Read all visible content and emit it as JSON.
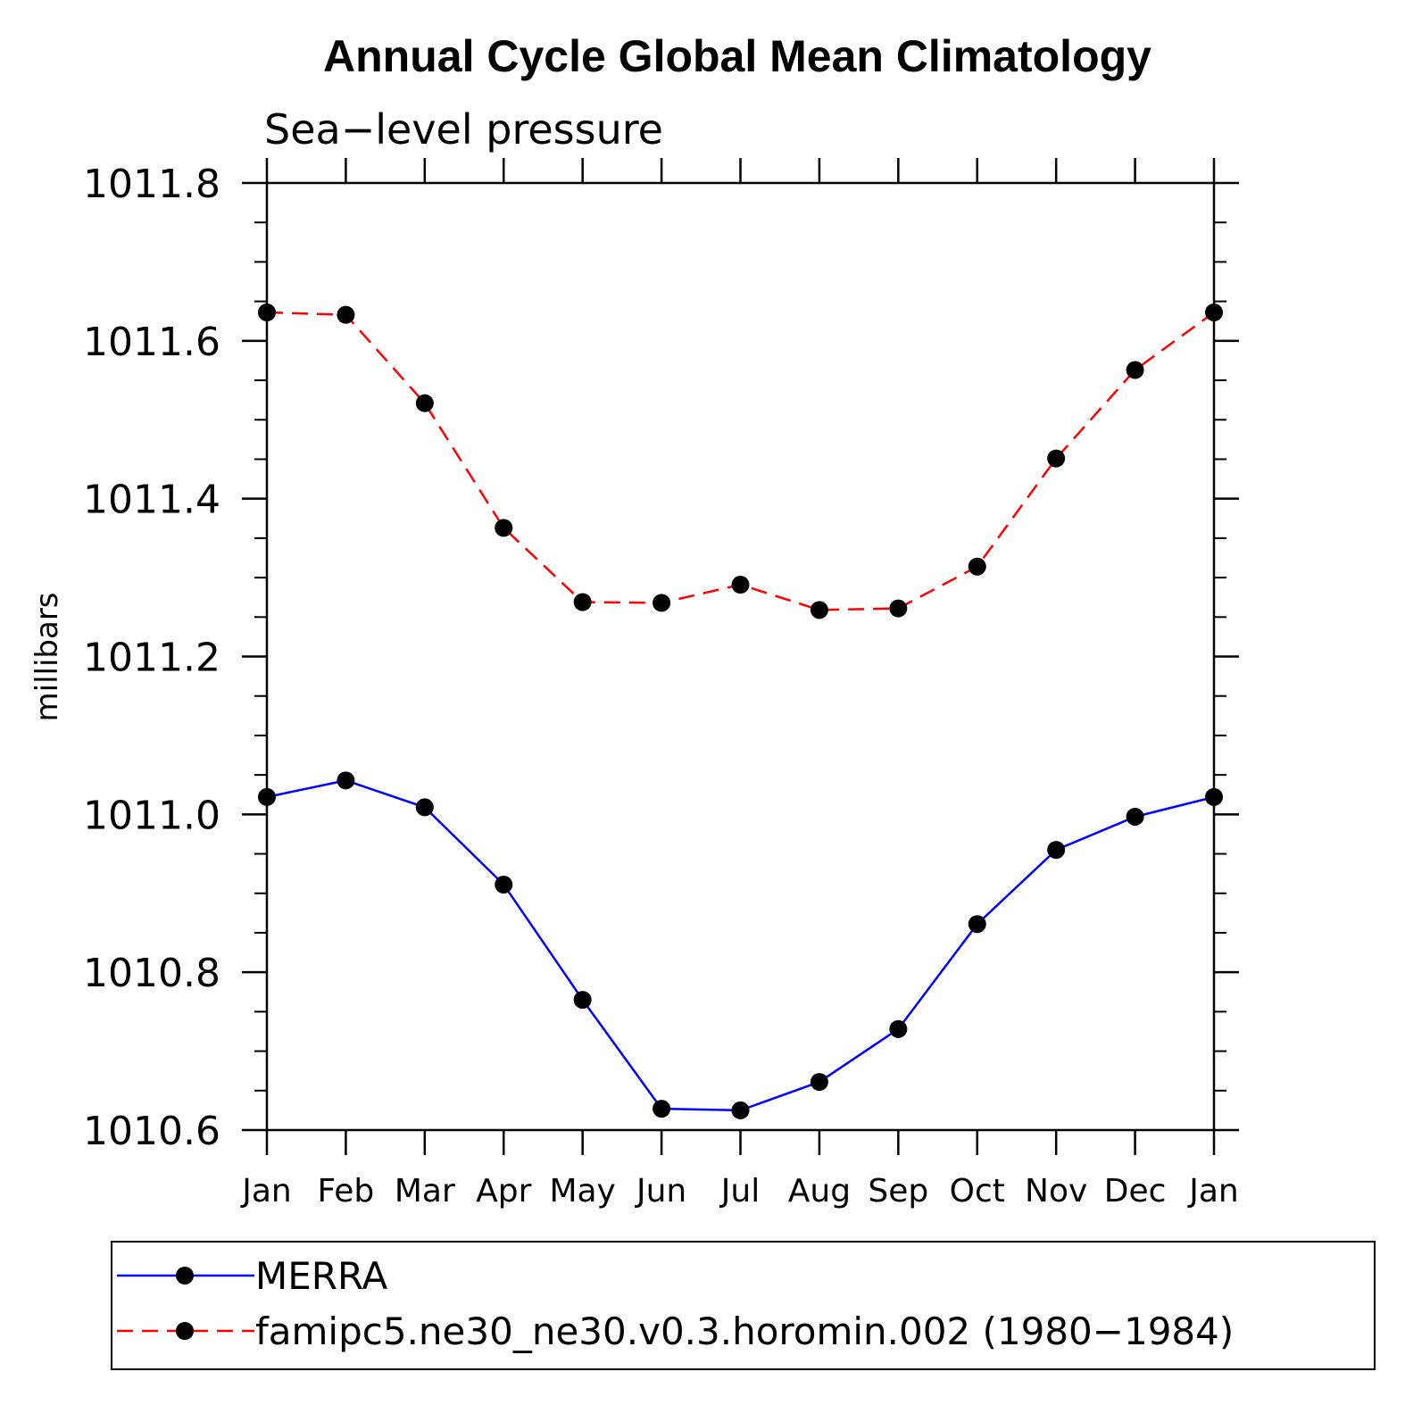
{
  "chart_data": {
    "type": "line",
    "title": "Annual Cycle Global Mean Climatology",
    "subtitle": "Sea−level pressure",
    "ylabel": "millibars",
    "xlabel": "",
    "ylim": [
      1010.6,
      1011.8
    ],
    "yticks": [
      "1011.8",
      "1011.6",
      "1011.4",
      "1011.2",
      "1011.0",
      "1010.8",
      "1010.6"
    ],
    "ytick_values": [
      1011.8,
      1011.6,
      1011.4,
      1011.2,
      1011.0,
      1010.8,
      1010.6
    ],
    "categories": [
      "Jan",
      "Feb",
      "Mar",
      "Apr",
      "May",
      "Jun",
      "Jul",
      "Aug",
      "Sep",
      "Oct",
      "Nov",
      "Dec",
      "Jan"
    ],
    "grid": false,
    "legend_position": "bottom",
    "series": [
      {
        "name": "MERRA",
        "color": "#0000ff",
        "dash": "solid",
        "marker": "filled-circle",
        "values": [
          1011.022,
          1011.043,
          1011.009,
          1010.911,
          1010.765,
          1010.627,
          1010.625,
          1010.661,
          1010.728,
          1010.861,
          1010.955,
          1010.997,
          1011.022
        ]
      },
      {
        "name": "famipc5.ne30_ne30.v0.3.horomin.002 (1980−1984)",
        "color": "#ff0000",
        "dash": "dashed",
        "marker": "filled-circle",
        "values": [
          1011.636,
          1011.633,
          1011.521,
          1011.363,
          1011.269,
          1011.268,
          1011.291,
          1011.259,
          1011.261,
          1011.314,
          1011.451,
          1011.563,
          1011.636
        ]
      }
    ]
  }
}
